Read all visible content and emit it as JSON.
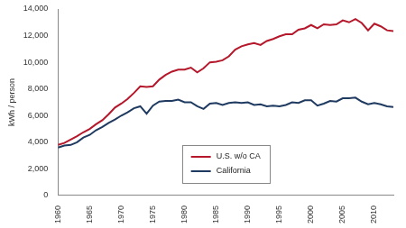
{
  "chart_data": {
    "type": "line",
    "ylabel": "kWh / person",
    "x": [
      1960,
      1961,
      1962,
      1963,
      1964,
      1965,
      1966,
      1967,
      1968,
      1969,
      1970,
      1971,
      1972,
      1973,
      1974,
      1975,
      1976,
      1977,
      1978,
      1979,
      1980,
      1981,
      1982,
      1983,
      1984,
      1985,
      1986,
      1987,
      1988,
      1989,
      1990,
      1991,
      1992,
      1993,
      1994,
      1995,
      1996,
      1997,
      1998,
      1999,
      2000,
      2001,
      2002,
      2003,
      2004,
      2005,
      2006,
      2007,
      2008,
      2009,
      2010,
      2011,
      2012,
      2013
    ],
    "series": [
      {
        "name": "U.S. w/o CA",
        "color": "#b5172b",
        "values": [
          3800,
          3950,
          4200,
          4450,
          4750,
          5000,
          5350,
          5650,
          6100,
          6600,
          6900,
          7250,
          7700,
          8200,
          8150,
          8200,
          8700,
          9050,
          9300,
          9450,
          9450,
          9600,
          9250,
          9550,
          10000,
          10050,
          10150,
          10450,
          10950,
          11200,
          11350,
          11450,
          11300,
          11600,
          11750,
          11950,
          12100,
          12100,
          12450,
          12550,
          12800,
          12550,
          12850,
          12800,
          12850,
          13150,
          13000,
          13250,
          12950,
          12400,
          12900,
          12700,
          12400,
          12350
        ]
      },
      {
        "name": "California",
        "color": "#1f3a60",
        "values": [
          3600,
          3750,
          3800,
          4000,
          4350,
          4550,
          4900,
          5150,
          5450,
          5700,
          6000,
          6250,
          6550,
          6700,
          6150,
          6750,
          7050,
          7100,
          7100,
          7200,
          7000,
          7000,
          6700,
          6500,
          6900,
          6950,
          6800,
          6950,
          7000,
          6950,
          7000,
          6800,
          6850,
          6700,
          6750,
          6700,
          6800,
          7000,
          6950,
          7150,
          7150,
          6750,
          6900,
          7100,
          7050,
          7300,
          7300,
          7350,
          7050,
          6850,
          6950,
          6850,
          6700,
          6650
        ]
      }
    ],
    "xlim": [
      1960,
      2013
    ],
    "xticks": [
      1960,
      1965,
      1970,
      1975,
      1980,
      1985,
      1990,
      1995,
      2000,
      2005,
      2010
    ],
    "ylim": [
      0,
      14000
    ],
    "yticks": [
      0,
      {
        "value": 2000,
        "label": "2,000"
      },
      {
        "value": 4000,
        "label": "4,000"
      },
      {
        "value": 6000,
        "label": "6,000"
      },
      {
        "value": 8000,
        "label": "8,000"
      },
      {
        "value": 10000,
        "label": "10,000"
      },
      {
        "value": 12000,
        "label": "12,000"
      },
      {
        "value": 14000,
        "label": "14,000"
      }
    ],
    "grid": false,
    "legend": "lower center"
  }
}
